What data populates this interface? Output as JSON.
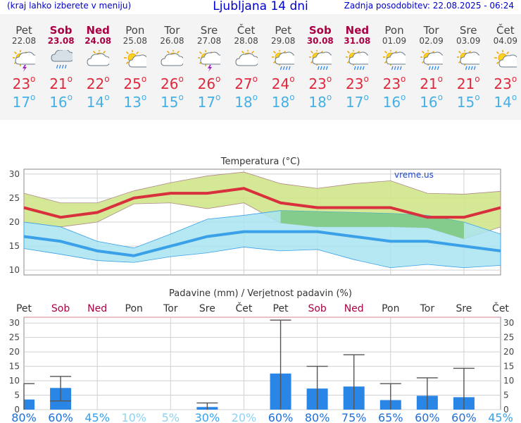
{
  "header": {
    "left_note": "(kraj lahko izberete v meniju)",
    "title": "Ljubljana 14 dni",
    "updated": "Zadnja posodobitev: 22.08.2025 - 06:24"
  },
  "forecast": [
    {
      "day": "Pet",
      "date": "22.08",
      "icon": "thunderstorm-icon",
      "weekend": false,
      "max": "23",
      "min": "17"
    },
    {
      "day": "Sob",
      "date": "23.08",
      "icon": "rain-cloud-icon",
      "weekend": true,
      "max": "21",
      "min": "16"
    },
    {
      "day": "Ned",
      "date": "24.08",
      "icon": "partly-cloudy-icon",
      "weekend": true,
      "max": "22",
      "min": "14"
    },
    {
      "day": "Pon",
      "date": "25.08",
      "icon": "sun-cloud-icon",
      "weekend": false,
      "max": "25",
      "min": "13"
    },
    {
      "day": "Tor",
      "date": "26.08",
      "icon": "partly-cloudy-icon",
      "weekend": false,
      "max": "26",
      "min": "15"
    },
    {
      "day": "Sre",
      "date": "27.08",
      "icon": "thunderstorm-icon",
      "weekend": false,
      "max": "26",
      "min": "17"
    },
    {
      "day": "Čet",
      "date": "28.08",
      "icon": "partly-cloudy-icon",
      "weekend": false,
      "max": "27",
      "min": "18"
    },
    {
      "day": "Pet",
      "date": "29.08",
      "icon": "sun-rain-icon",
      "weekend": false,
      "max": "24",
      "min": "18"
    },
    {
      "day": "Sob",
      "date": "30.08",
      "icon": "sun-rain-icon",
      "weekend": true,
      "max": "23",
      "min": "18"
    },
    {
      "day": "Ned",
      "date": "31.08",
      "icon": "sun-rain-icon",
      "weekend": true,
      "max": "23",
      "min": "17"
    },
    {
      "day": "Pon",
      "date": "01.09",
      "icon": "sun-rain-icon",
      "weekend": false,
      "max": "23",
      "min": "16"
    },
    {
      "day": "Tor",
      "date": "02.09",
      "icon": "sun-rain-icon",
      "weekend": false,
      "max": "21",
      "min": "16"
    },
    {
      "day": "Sre",
      "date": "03.09",
      "icon": "sun-rain-icon",
      "weekend": false,
      "max": "21",
      "min": "15"
    },
    {
      "day": "Čet",
      "date": "04.09",
      "icon": "sun-cloud-icon",
      "weekend": false,
      "max": "23",
      "min": "14"
    }
  ],
  "chart_data": [
    {
      "type": "line",
      "title": "Temperatura (°C)",
      "watermark": "vreme.us",
      "x": [
        "22.08",
        "23.08",
        "24.08",
        "25.08",
        "26.08",
        "27.08",
        "28.08",
        "29.08",
        "30.08",
        "31.08",
        "01.09",
        "02.09",
        "03.09",
        "04.09"
      ],
      "ylim": [
        9,
        31
      ],
      "yticks": [
        10,
        15,
        20,
        25,
        30
      ],
      "grid": true,
      "series": [
        {
          "values": [
            23,
            21,
            22,
            25,
            26,
            26,
            27,
            24,
            23,
            23,
            23,
            21,
            21,
            23
          ],
          "color": "#d8303c"
        },
        {
          "values": [
            17,
            16,
            14,
            13,
            15,
            17,
            18,
            18,
            18,
            17,
            16,
            16,
            15,
            14
          ],
          "color": "#3aa0e8"
        }
      ],
      "bands": [
        {
          "upper": [
            26,
            24,
            24,
            26.5,
            28.2,
            29.6,
            30.4,
            28,
            27,
            28,
            28.6,
            26,
            25.8,
            26.4
          ],
          "lower": [
            20,
            19,
            20,
            23.8,
            24,
            22.8,
            24,
            19.8,
            19,
            19,
            19,
            18.8,
            16.5,
            19
          ],
          "color": "#cfe68a"
        },
        {
          "upper": [
            20,
            19,
            16,
            14.6,
            17.5,
            20.6,
            21.4,
            22.4,
            22.2,
            22,
            21.8,
            21.4,
            20,
            17.5
          ],
          "lower": [
            14.5,
            13.3,
            12,
            11.6,
            12.8,
            13.6,
            14.8,
            14,
            14.3,
            12.2,
            10.5,
            11.2,
            10.5,
            11
          ],
          "color": "#a8e4f0"
        }
      ]
    },
    {
      "type": "bar",
      "title": "Padavine (mm) / Verjetnost padavin (%)",
      "categories": [
        "Pet",
        "Sob",
        "Ned",
        "Pon",
        "Tor",
        "Sre",
        "Čet",
        "Pet",
        "Sob",
        "Ned",
        "Pon",
        "Tor",
        "Sre",
        "Čet"
      ],
      "weekend": [
        false,
        true,
        true,
        false,
        false,
        false,
        false,
        false,
        true,
        true,
        false,
        false,
        false,
        false
      ],
      "ylim": [
        0,
        32
      ],
      "yticks": [
        0,
        5,
        10,
        15,
        20,
        25,
        30
      ],
      "values": [
        3.5,
        7.5,
        0,
        0,
        0,
        0.9,
        0,
        12.5,
        7.3,
        8,
        3.3,
        4.8,
        4.3,
        0
      ],
      "error_high": [
        9,
        11.5,
        0,
        0,
        0,
        2.3,
        0,
        31,
        15,
        19,
        9,
        11,
        14.3,
        0
      ],
      "error_low": [
        0,
        3,
        0,
        0,
        0,
        0,
        0,
        0,
        0,
        0,
        0,
        0,
        0,
        0
      ],
      "probability": [
        "80%",
        "60%",
        "45%",
        "10%",
        "5%",
        "30%",
        "20%",
        "60%",
        "80%",
        "75%",
        "65%",
        "60%",
        "60%",
        "45%"
      ],
      "probability_colors": [
        "#1f6fd6",
        "#1f6fd6",
        "#3aa0e8",
        "#8fd2f0",
        "#8fd2f0",
        "#3aa0e8",
        "#8fd2f0",
        "#1f6fd6",
        "#1f6fd6",
        "#1f6fd6",
        "#1f6fd6",
        "#1f6fd6",
        "#1f6fd6",
        "#3aa0e8"
      ],
      "bar_color": "#2a86e6",
      "grid": true
    }
  ]
}
